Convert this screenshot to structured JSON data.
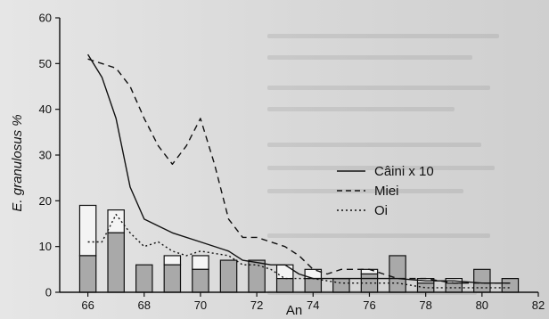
{
  "chart_data": {
    "type": "bar",
    "xlabel": "An",
    "ylabel": "E. granulosus %",
    "xlim": [
      65,
      82
    ],
    "ylim": [
      0,
      60
    ],
    "x_ticks": [
      "66",
      "68",
      "70",
      "72",
      "74",
      "76",
      "78",
      "80",
      "82"
    ],
    "y_ticks": [
      "0",
      "10",
      "20",
      "30",
      "40",
      "50",
      "60"
    ],
    "grid": false,
    "legend_position": "right",
    "bars": {
      "x": [
        66,
        67,
        68,
        69,
        70,
        71,
        72,
        73,
        74,
        75,
        76,
        77,
        78,
        79,
        80,
        81
      ],
      "bottom_values": [
        8,
        13,
        6,
        6,
        5,
        7,
        7,
        3,
        3,
        3,
        4,
        8,
        2,
        2,
        5,
        3
      ],
      "top_values": [
        19,
        18,
        null,
        8,
        8,
        7,
        7,
        6,
        5,
        3,
        5,
        8,
        3,
        3,
        5,
        3
      ]
    },
    "series": [
      {
        "name": "Câini x 10",
        "style": "solid",
        "x": [
          66,
          66.5,
          67,
          67.5,
          68,
          69,
          70,
          71,
          71.5,
          72,
          72.5,
          73,
          73.5,
          74,
          75,
          76,
          77,
          78,
          79,
          80,
          81
        ],
        "y": [
          52,
          47,
          38,
          23,
          16,
          13,
          11,
          9,
          7,
          6.5,
          6,
          6,
          4,
          3,
          3,
          3,
          3,
          2.5,
          2.5,
          2,
          2
        ]
      },
      {
        "name": "Miei",
        "style": "dashed",
        "x": [
          66,
          67,
          67.5,
          68,
          68.5,
          69,
          69.5,
          70,
          70.5,
          71,
          71.5,
          72,
          72.5,
          73,
          73.5,
          74,
          74.5,
          75,
          76,
          76.5,
          77,
          78,
          79,
          80,
          81
        ],
        "y": [
          51,
          49,
          45,
          38,
          32,
          28,
          32,
          38,
          28,
          16,
          12,
          12,
          11,
          10,
          8,
          5,
          4,
          5,
          5,
          4,
          3,
          3,
          2,
          2,
          2
        ]
      },
      {
        "name": "Oi",
        "style": "dotted",
        "x": [
          66,
          66.5,
          67,
          67.5,
          68,
          68.5,
          69,
          69.5,
          70,
          70.5,
          71,
          71.5,
          72,
          72.5,
          73,
          74,
          75,
          76,
          77,
          78,
          79,
          80,
          81
        ],
        "y": [
          11,
          11,
          17,
          13,
          10,
          11,
          9,
          8,
          9,
          8.5,
          8,
          6,
          6,
          5,
          3,
          3,
          2,
          2,
          2,
          1,
          1,
          1,
          1
        ]
      }
    ]
  }
}
